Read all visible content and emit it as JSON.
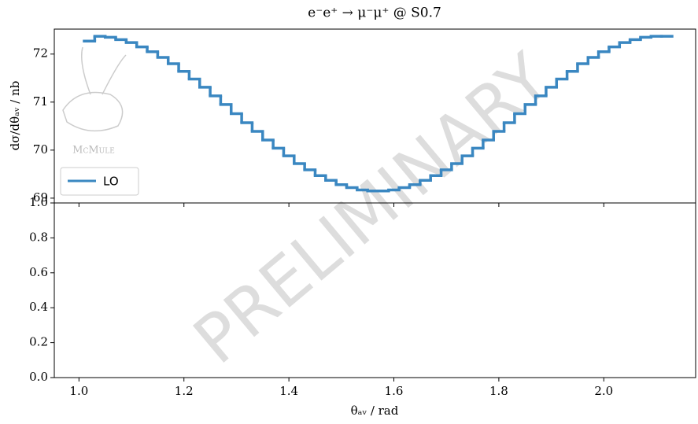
{
  "chart_data": [
    {
      "type": "step",
      "title": "e⁻e⁺ → μ⁻μ⁺ @ S0.7",
      "ylabel": "dσ/dθₐᵥ / nb",
      "xlim": [
        0.953,
        2.175
      ],
      "ylim": [
        68.9,
        72.52
      ],
      "yticks": [
        69,
        70,
        71,
        72
      ],
      "legend": "lower left",
      "watermark": "PRELIMINARY",
      "logo_text": "McMule",
      "series": [
        {
          "name": "LO",
          "color": "#3a87c1",
          "bins": [
            1.01,
            1.03,
            1.05,
            1.07,
            1.09,
            1.11,
            1.13,
            1.15,
            1.17,
            1.19,
            1.21,
            1.23,
            1.25,
            1.27,
            1.29,
            1.31,
            1.33,
            1.35,
            1.37,
            1.39,
            1.41,
            1.43,
            1.45,
            1.47,
            1.49,
            1.51,
            1.53,
            1.55,
            1.57,
            1.59,
            1.61,
            1.63,
            1.65,
            1.67,
            1.69,
            1.71,
            1.73,
            1.75,
            1.77,
            1.79,
            1.81,
            1.83,
            1.85,
            1.87,
            1.89,
            1.91,
            1.93,
            1.95,
            1.97,
            1.99,
            2.01,
            2.03,
            2.05,
            2.07,
            2.09,
            2.11,
            2.13
          ],
          "values": [
            72.27,
            72.37,
            72.35,
            72.3,
            72.24,
            72.15,
            72.05,
            71.93,
            71.8,
            71.64,
            71.48,
            71.31,
            71.13,
            70.95,
            70.76,
            70.57,
            70.39,
            70.21,
            70.04,
            69.88,
            69.72,
            69.59,
            69.47,
            69.37,
            69.28,
            69.22,
            69.17,
            69.15,
            69.15,
            69.17,
            69.22,
            69.28,
            69.37,
            69.47,
            69.59,
            69.72,
            69.88,
            70.04,
            70.21,
            70.39,
            70.57,
            70.76,
            70.95,
            71.13,
            71.31,
            71.48,
            71.64,
            71.8,
            71.93,
            72.05,
            72.15,
            72.24,
            72.3,
            72.35,
            72.37,
            72.37
          ]
        }
      ]
    },
    {
      "type": "empty",
      "xlabel": "θₐᵥ / rad",
      "xlim": [
        0.953,
        2.175
      ],
      "xticks": [
        {
          "value": 1,
          "label": "1.0"
        },
        1.2,
        1.4,
        1.6,
        1.8,
        {
          "value": 2,
          "label": "2.0"
        }
      ],
      "ylim": [
        0,
        1
      ],
      "yticks": [
        {
          "value": 0,
          "label": "0.0"
        },
        0.2,
        0.4,
        0.6,
        0.8,
        {
          "value": 1,
          "label": "1.0"
        }
      ]
    }
  ]
}
